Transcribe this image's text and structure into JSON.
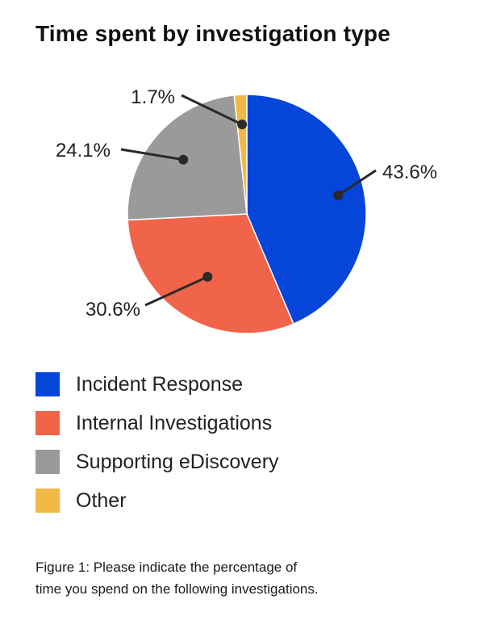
{
  "chart_data": {
    "type": "pie",
    "title": "Time spent by investigation type",
    "categories": [
      "Incident Response",
      "Internal Investigations",
      "Supporting eDiscovery",
      "Other"
    ],
    "values": [
      43.6,
      30.6,
      24.1,
      1.7
    ],
    "value_labels": [
      "43.6%",
      "30.6%",
      "24.1%",
      "1.7%"
    ],
    "colors": [
      "#0545d9",
      "#f0644a",
      "#9a9a9a",
      "#f2b844"
    ],
    "legend_position": "bottom"
  },
  "caption": {
    "line1": "Figure 1: Please indicate the percentage of",
    "line2": "time you spend on the following investigations."
  }
}
